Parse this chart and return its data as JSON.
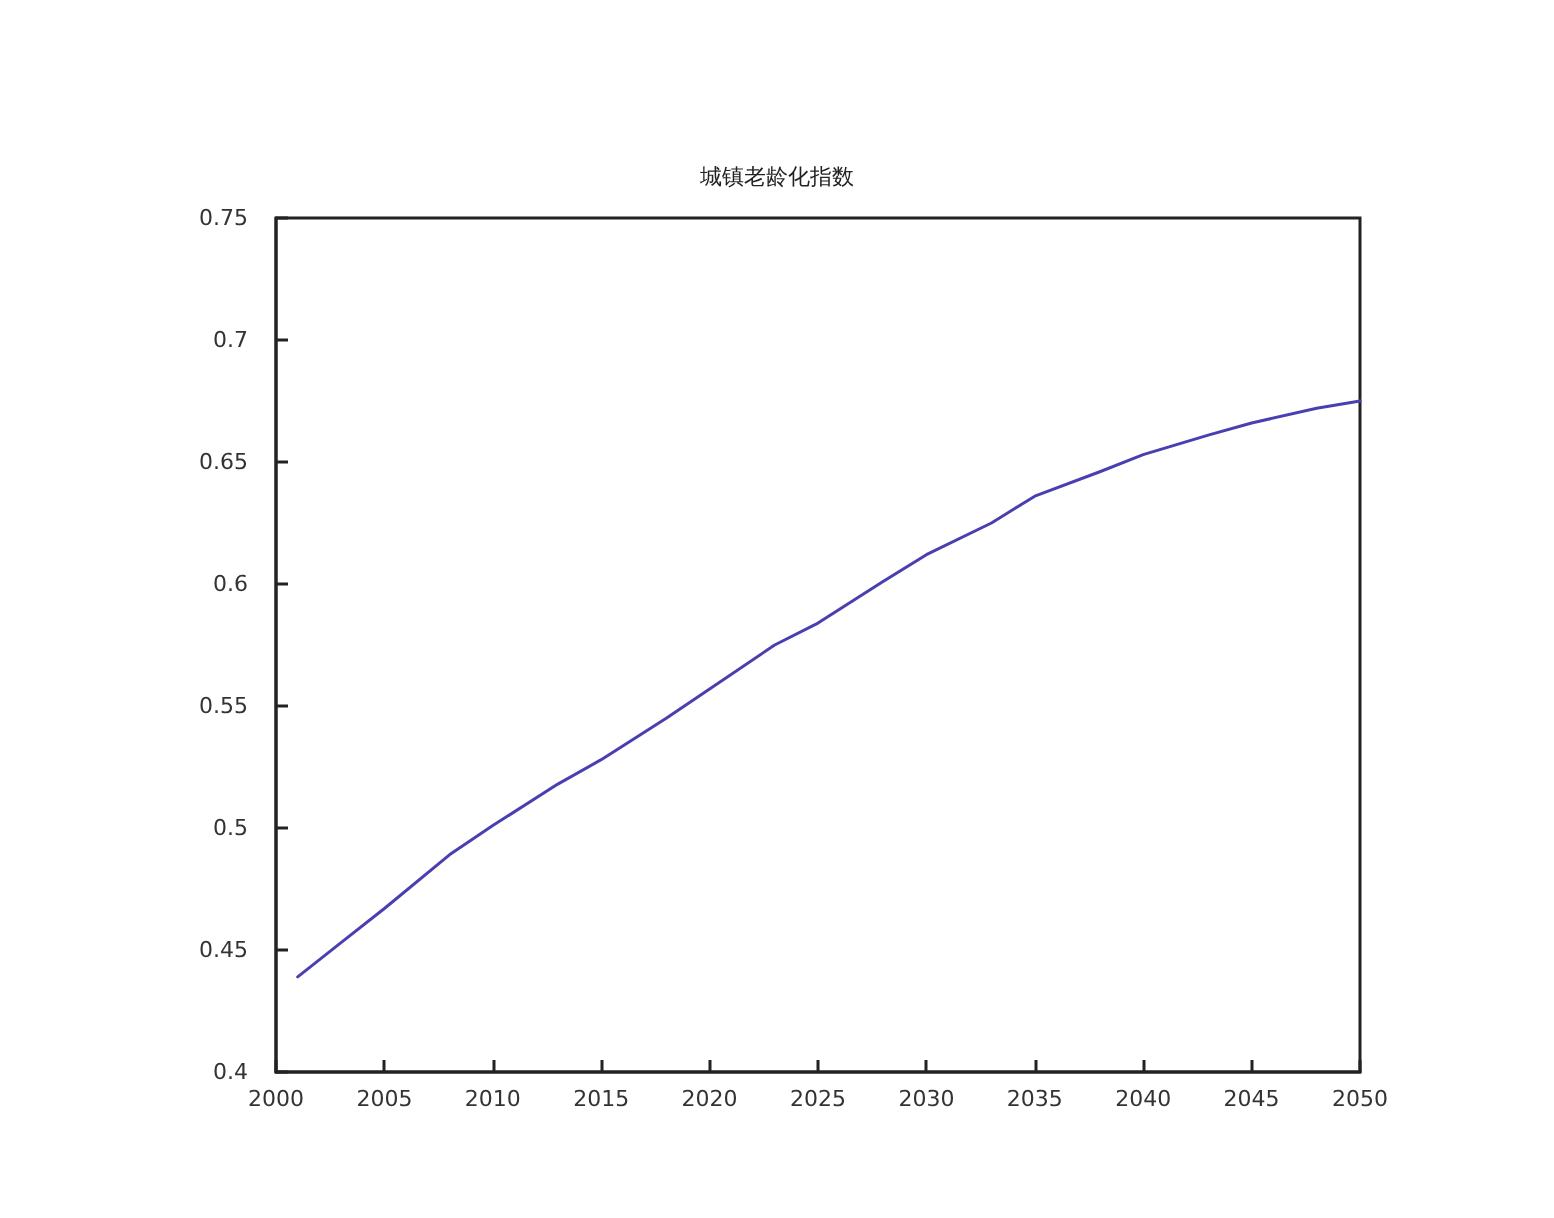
{
  "chart_data": {
    "type": "line",
    "title": "城镇老龄化指数",
    "x": [
      2001,
      2003,
      2005,
      2008,
      2010,
      2013,
      2015,
      2018,
      2020,
      2023,
      2025,
      2028,
      2030,
      2033,
      2035,
      2038,
      2040,
      2043,
      2045,
      2048,
      2050
    ],
    "series": [
      {
        "color": "#4a3fb0",
        "values": [
          0.439,
          0.453,
          0.467,
          0.489,
          0.501,
          0.518,
          0.528,
          0.545,
          0.557,
          0.575,
          0.584,
          0.601,
          0.612,
          0.625,
          0.636,
          0.646,
          0.653,
          0.661,
          0.666,
          0.672,
          0.675
        ]
      }
    ],
    "xlim": [
      2000,
      2050
    ],
    "xticks": [
      2000,
      2005,
      2010,
      2015,
      2020,
      2025,
      2030,
      2035,
      2040,
      2045,
      2050
    ],
    "ylim": [
      0.4,
      0.75
    ],
    "yticks": [
      0.4,
      0.45,
      0.5,
      0.55,
      0.6,
      0.65,
      0.7,
      0.75
    ],
    "grid": false,
    "marker": "none",
    "line_style": "solid"
  }
}
